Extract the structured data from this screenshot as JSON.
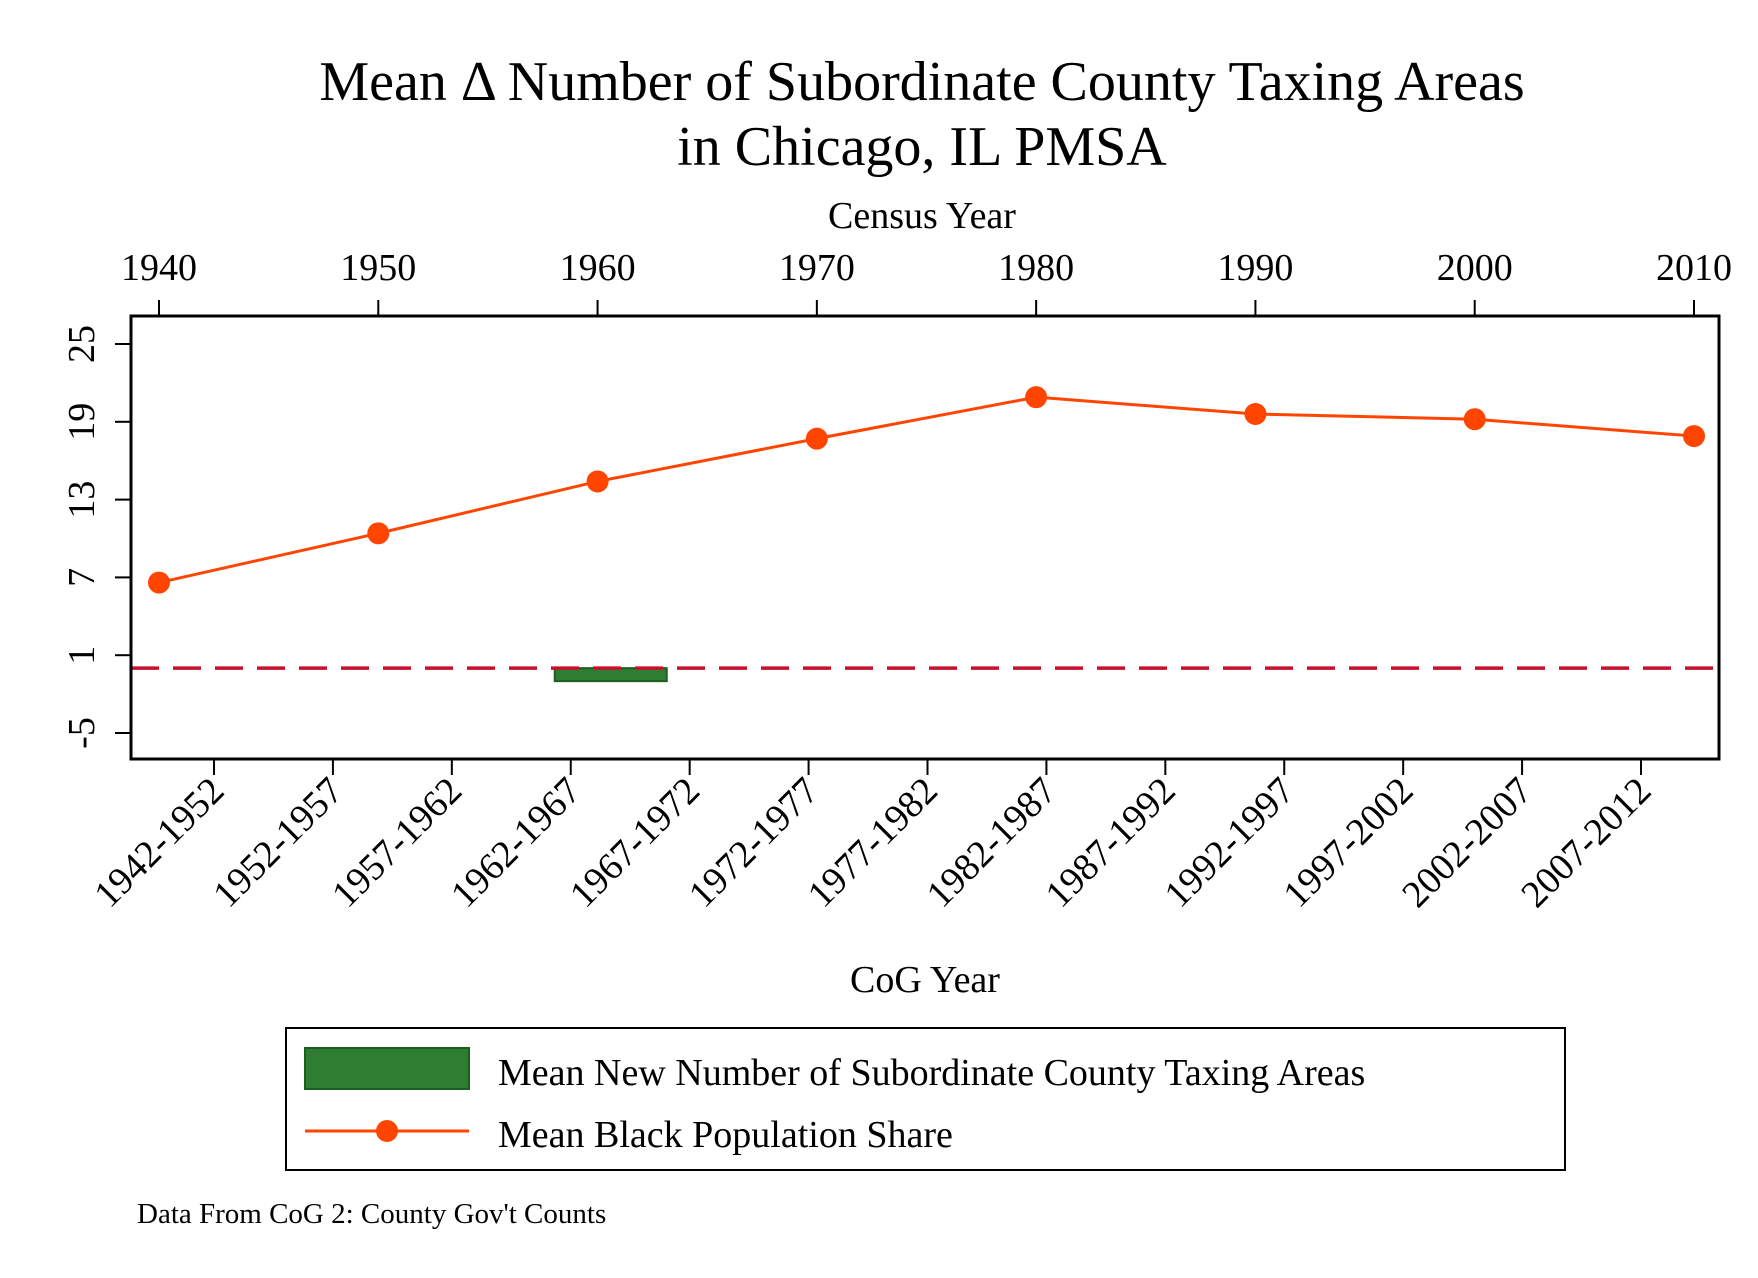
{
  "chart_data": {
    "type": "line",
    "title_line1": "Mean Δ Number of Subordinate County Taxing Areas",
    "title_line2": "in Chicago, IL PMSA",
    "top_axis": {
      "label": "Census Year",
      "range": [
        1940,
        2010
      ],
      "ticks": [
        "1940",
        "1950",
        "1960",
        "1970",
        "1980",
        "1990",
        "2000",
        "2010"
      ]
    },
    "y_axis": {
      "range": [
        -7,
        27
      ],
      "ticks": [
        "25",
        "19",
        "13",
        "7",
        "1",
        "-5"
      ],
      "tick_values": [
        25,
        19,
        13,
        7,
        1,
        -5
      ]
    },
    "bottom_axis": {
      "label": "CoG Year",
      "categories": [
        "1942-1952",
        "1952-1957",
        "1957-1962",
        "1962-1967",
        "1967-1972",
        "1972-1977",
        "1977-1982",
        "1982-1987",
        "1987-1992",
        "1992-1997",
        "1997-2002",
        "2002-2007",
        "2007-2012"
      ]
    },
    "reference_line": {
      "y": 0,
      "style": "dashed",
      "color": "#C8102E"
    },
    "series": [
      {
        "name": "Mean New Number of Subordinate County Taxing Areas",
        "type": "bar",
        "color": "#2E7D32",
        "points": [
          {
            "x": 1960.6,
            "value": -1.0
          }
        ]
      },
      {
        "name": "Mean Black Population Share",
        "type": "line",
        "color": "#FF4500",
        "x": [
          1940,
          1950,
          1960,
          1970,
          1980,
          1990,
          2000,
          2010
        ],
        "y": [
          6.6,
          10.4,
          14.4,
          17.7,
          20.9,
          19.6,
          19.2,
          17.9
        ]
      }
    ],
    "legend": {
      "placement": "bottom",
      "items": [
        "Mean New Number of Subordinate County Taxing Areas",
        "Mean Black Population Share"
      ]
    },
    "note": "Data From CoG 2: County Gov't Counts"
  }
}
